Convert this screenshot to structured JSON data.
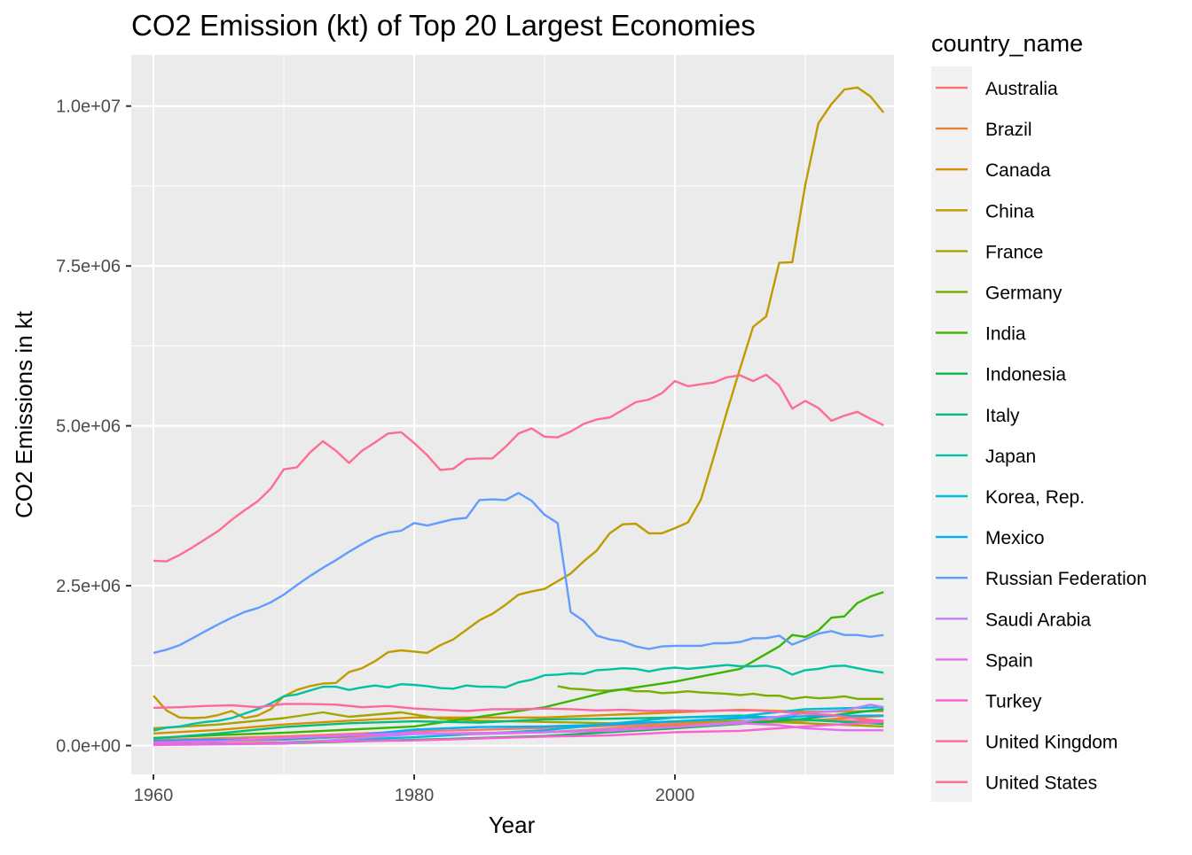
{
  "chart_data": {
    "type": "line",
    "title": "CO2 Emission (kt) of Top 20 Largest Economies",
    "xlabel": "Year",
    "ylabel": "CO2 Emissions in kt",
    "legend_title": "country_name",
    "legend_position": "right",
    "grid": true,
    "xlim": [
      1958.3,
      2016.8
    ],
    "ylim": [
      -450000,
      10800000
    ],
    "x_ticks": [
      1960,
      1980,
      2000
    ],
    "x_tick_labels": [
      "1960",
      "1980",
      "2000"
    ],
    "y_ticks": [
      0,
      2500000,
      5000000,
      7500000,
      10000000
    ],
    "y_tick_labels": [
      "0.0e+00",
      "2.5e+06",
      "5.0e+06",
      "7.5e+06",
      "1.0e+07"
    ],
    "series": [
      {
        "name": "Australia",
        "color": "#F8766D",
        "x": [
          1960,
          1970,
          1980,
          1990,
          2000,
          2008,
          2016
        ],
        "y": [
          88000,
          145000,
          220000,
          275000,
          340000,
          400000,
          380000
        ]
      },
      {
        "name": "Brazil",
        "color": "#EA8331",
        "x": [
          1960,
          1970,
          1980,
          1990,
          2000,
          2008,
          2016
        ],
        "y": [
          47000,
          92000,
          185000,
          210000,
          320000,
          365000,
          465000
        ]
      },
      {
        "name": "Canada",
        "color": "#D89000",
        "x": [
          1960,
          1965,
          1970,
          1975,
          1980,
          1990,
          2000,
          2005,
          2010,
          2016
        ],
        "y": [
          190000,
          245000,
          330000,
          390000,
          440000,
          440000,
          520000,
          560000,
          530000,
          540000
        ]
      },
      {
        "name": "China",
        "color": "#C09B00",
        "x": [
          1960,
          1961,
          1962,
          1963,
          1964,
          1965,
          1966,
          1967,
          1968,
          1969,
          1970,
          1971,
          1972,
          1973,
          1974,
          1975,
          1976,
          1977,
          1978,
          1979,
          1980,
          1981,
          1982,
          1983,
          1984,
          1985,
          1986,
          1987,
          1988,
          1989,
          1990,
          1991,
          1992,
          1993,
          1994,
          1995,
          1996,
          1997,
          1998,
          1999,
          2000,
          2001,
          2002,
          2003,
          2004,
          2005,
          2006,
          2007,
          2008,
          2009,
          2010,
          2011,
          2012,
          2013,
          2014,
          2015,
          2016
        ],
        "y": [
          780000,
          550000,
          440000,
          430000,
          440000,
          480000,
          540000,
          430000,
          470000,
          570000,
          770000,
          870000,
          930000,
          970000,
          980000,
          1150000,
          1210000,
          1320000,
          1460000,
          1490000,
          1470000,
          1450000,
          1570000,
          1660000,
          1810000,
          1960000,
          2060000,
          2200000,
          2360000,
          2410000,
          2450000,
          2570000,
          2690000,
          2880000,
          3050000,
          3320000,
          3460000,
          3470000,
          3320000,
          3320000,
          3400000,
          3490000,
          3850000,
          4530000,
          5230000,
          5900000,
          6550000,
          6710000,
          7550000,
          7560000,
          8770000,
          9730000,
          10030000,
          10260000,
          10290000,
          10150000,
          9900000
        ]
      },
      {
        "name": "France",
        "color": "#A3A500",
        "x": [
          1960,
          1965,
          1970,
          1973,
          1975,
          1979,
          1982,
          1985,
          1990,
          1995,
          2000,
          2005,
          2010,
          2016
        ],
        "y": [
          270000,
          330000,
          430000,
          520000,
          450000,
          520000,
          420000,
          390000,
          370000,
          350000,
          370000,
          390000,
          350000,
          300000
        ]
      },
      {
        "name": "Germany",
        "color": "#7CAE00",
        "x": [
          1991,
          1992,
          1993,
          1994,
          1995,
          1996,
          1997,
          1998,
          1999,
          2000,
          2001,
          2002,
          2003,
          2004,
          2005,
          2006,
          2007,
          2008,
          2009,
          2010,
          2011,
          2012,
          2013,
          2014,
          2015,
          2016
        ],
        "y": [
          930000,
          890000,
          880000,
          860000,
          860000,
          880000,
          850000,
          850000,
          820000,
          830000,
          850000,
          830000,
          820000,
          810000,
          790000,
          810000,
          780000,
          780000,
          730000,
          760000,
          740000,
          750000,
          770000,
          730000,
          730000,
          730000
        ]
      },
      {
        "name": "India",
        "color": "#39B600",
        "x": [
          1960,
          1965,
          1970,
          1975,
          1980,
          1985,
          1990,
          1995,
          2000,
          2005,
          2008,
          2009,
          2010,
          2011,
          2012,
          2013,
          2014,
          2015,
          2016
        ],
        "y": [
          120000,
          165000,
          200000,
          250000,
          300000,
          450000,
          600000,
          850000,
          1000000,
          1200000,
          1550000,
          1730000,
          1700000,
          1800000,
          2000000,
          2020000,
          2230000,
          2330000,
          2400000
        ]
      },
      {
        "name": "Indonesia",
        "color": "#00BB4E",
        "x": [
          1960,
          1970,
          1980,
          1990,
          2000,
          2005,
          2010,
          2016
        ],
        "y": [
          20000,
          35000,
          90000,
          150000,
          270000,
          340000,
          420000,
          570000
        ]
      },
      {
        "name": "Italy",
        "color": "#00BF7D",
        "x": [
          1960,
          1965,
          1970,
          1975,
          1980,
          1985,
          1990,
          1995,
          2000,
          2005,
          2010,
          2016
        ],
        "y": [
          110000,
          190000,
          290000,
          350000,
          380000,
          360000,
          410000,
          420000,
          440000,
          470000,
          400000,
          340000
        ]
      },
      {
        "name": "Japan",
        "color": "#00C1A3",
        "x": [
          1960,
          1961,
          1962,
          1963,
          1964,
          1965,
          1966,
          1967,
          1968,
          1969,
          1970,
          1971,
          1972,
          1973,
          1974,
          1975,
          1976,
          1977,
          1978,
          1979,
          1980,
          1981,
          1982,
          1983,
          1984,
          1985,
          1986,
          1987,
          1988,
          1989,
          1990,
          1991,
          1992,
          1993,
          1994,
          1995,
          1996,
          1997,
          1998,
          1999,
          2000,
          2001,
          2002,
          2003,
          2004,
          2005,
          2006,
          2007,
          2008,
          2009,
          2010,
          2011,
          2012,
          2013,
          2014,
          2015,
          2016
        ],
        "y": [
          235000,
          280000,
          300000,
          340000,
          370000,
          390000,
          430000,
          500000,
          570000,
          660000,
          770000,
          800000,
          860000,
          920000,
          920000,
          870000,
          910000,
          940000,
          910000,
          960000,
          950000,
          930000,
          900000,
          890000,
          940000,
          920000,
          920000,
          910000,
          990000,
          1030000,
          1100000,
          1110000,
          1130000,
          1120000,
          1180000,
          1190000,
          1210000,
          1200000,
          1160000,
          1200000,
          1220000,
          1200000,
          1220000,
          1240000,
          1260000,
          1240000,
          1240000,
          1250000,
          1210000,
          1110000,
          1180000,
          1200000,
          1240000,
          1250000,
          1210000,
          1170000,
          1140000
        ]
      },
      {
        "name": "Korea, Rep.",
        "color": "#00BCD8",
        "x": [
          1960,
          1970,
          1980,
          1990,
          2000,
          2005,
          2010,
          2016
        ],
        "y": [
          15000,
          50000,
          130000,
          240000,
          440000,
          460000,
          570000,
          600000
        ]
      },
      {
        "name": "Mexico",
        "color": "#00B0F6",
        "x": [
          1960,
          1965,
          1970,
          1975,
          1980,
          1985,
          1990,
          1995,
          2000,
          2005,
          2010,
          2016
        ],
        "y": [
          70000,
          90000,
          100000,
          150000,
          250000,
          290000,
          300000,
          330000,
          380000,
          430000,
          460000,
          470000
        ]
      },
      {
        "name": "Russian Federation",
        "color": "#619CFF",
        "x": [
          1960,
          1961,
          1962,
          1963,
          1964,
          1965,
          1966,
          1967,
          1968,
          1969,
          1970,
          1971,
          1972,
          1973,
          1974,
          1975,
          1976,
          1977,
          1978,
          1979,
          1980,
          1981,
          1982,
          1983,
          1984,
          1985,
          1986,
          1987,
          1988,
          1989,
          1990,
          1991,
          1992,
          1993,
          1994,
          1995,
          1996,
          1997,
          1998,
          1999,
          2000,
          2001,
          2002,
          2003,
          2004,
          2005,
          2006,
          2007,
          2008,
          2009,
          2010,
          2011,
          2012,
          2013,
          2014,
          2015,
          2016
        ],
        "y": [
          1450000,
          1500000,
          1570000,
          1680000,
          1790000,
          1900000,
          2000000,
          2090000,
          2150000,
          2240000,
          2360000,
          2510000,
          2650000,
          2780000,
          2900000,
          3030000,
          3150000,
          3260000,
          3330000,
          3360000,
          3480000,
          3440000,
          3490000,
          3540000,
          3560000,
          3840000,
          3850000,
          3840000,
          3950000,
          3830000,
          3610000,
          3480000,
          2090000,
          1950000,
          1720000,
          1660000,
          1630000,
          1550000,
          1510000,
          1550000,
          1560000,
          1560000,
          1560000,
          1600000,
          1600000,
          1620000,
          1680000,
          1680000,
          1720000,
          1580000,
          1660000,
          1750000,
          1790000,
          1730000,
          1730000,
          1700000,
          1730000
        ]
      },
      {
        "name": "Saudi Arabia",
        "color": "#B983FF",
        "x": [
          1960,
          1970,
          1980,
          1990,
          2000,
          2005,
          2010,
          2013,
          2015,
          2016
        ],
        "y": [
          8000,
          30000,
          180000,
          210000,
          290000,
          370000,
          510000,
          550000,
          640000,
          600000
        ]
      },
      {
        "name": "Spain",
        "color": "#E76BF3",
        "x": [
          1960,
          1965,
          1970,
          1975,
          1980,
          1985,
          1990,
          1995,
          2000,
          2005,
          2008,
          2010,
          2013,
          2016
        ],
        "y": [
          50000,
          70000,
          120000,
          160000,
          200000,
          180000,
          210000,
          230000,
          290000,
          350000,
          320000,
          270000,
          240000,
          240000
        ]
      },
      {
        "name": "Turkey",
        "color": "#FD61D1",
        "x": [
          1960,
          1965,
          1970,
          1975,
          1980,
          1985,
          1990,
          1995,
          2000,
          2005,
          2010,
          2016
        ],
        "y": [
          17000,
          27000,
          45000,
          70000,
          80000,
          110000,
          140000,
          160000,
          210000,
          230000,
          300000,
          370000
        ]
      },
      {
        "name": "United Kingdom",
        "color": "#FF67A4",
        "x": [
          1960,
          1962,
          1964,
          1966,
          1968,
          1970,
          1972,
          1974,
          1976,
          1978,
          1980,
          1982,
          1984,
          1986,
          1988,
          1990,
          1992,
          1994,
          1996,
          1998,
          2000,
          2002,
          2004,
          2006,
          2008,
          2010,
          2012,
          2014,
          2016
        ],
        "y": [
          590000,
          600000,
          620000,
          630000,
          600000,
          650000,
          650000,
          640000,
          600000,
          620000,
          580000,
          560000,
          540000,
          570000,
          570000,
          580000,
          570000,
          550000,
          560000,
          540000,
          550000,
          540000,
          550000,
          550000,
          530000,
          500000,
          480000,
          420000,
          390000
        ]
      },
      {
        "name": "United States",
        "color": "#FF6C91",
        "x": [
          1960,
          1961,
          1962,
          1963,
          1964,
          1965,
          1966,
          1967,
          1968,
          1969,
          1970,
          1971,
          1972,
          1973,
          1974,
          1975,
          1976,
          1977,
          1978,
          1979,
          1980,
          1981,
          1982,
          1983,
          1984,
          1985,
          1986,
          1987,
          1988,
          1989,
          1990,
          1991,
          1992,
          1993,
          1994,
          1995,
          1996,
          1997,
          1998,
          1999,
          2000,
          2001,
          2002,
          2003,
          2004,
          2005,
          2006,
          2007,
          2008,
          2009,
          2010,
          2011,
          2012,
          2013,
          2014,
          2015,
          2016
        ],
        "y": [
          2890000,
          2880000,
          2980000,
          3100000,
          3230000,
          3360000,
          3530000,
          3680000,
          3820000,
          4020000,
          4320000,
          4350000,
          4580000,
          4760000,
          4610000,
          4420000,
          4610000,
          4740000,
          4880000,
          4900000,
          4730000,
          4540000,
          4310000,
          4330000,
          4480000,
          4490000,
          4490000,
          4670000,
          4880000,
          4960000,
          4830000,
          4820000,
          4910000,
          5030000,
          5100000,
          5130000,
          5250000,
          5370000,
          5410000,
          5510000,
          5700000,
          5620000,
          5650000,
          5680000,
          5760000,
          5790000,
          5700000,
          5800000,
          5630000,
          5270000,
          5390000,
          5280000,
          5080000,
          5160000,
          5220000,
          5110000,
          5010000
        ]
      }
    ]
  }
}
